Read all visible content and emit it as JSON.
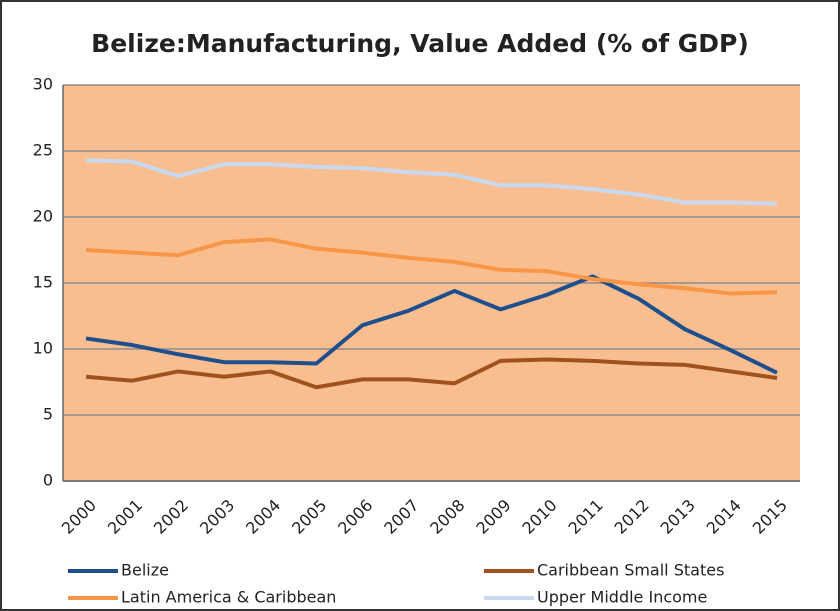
{
  "chart_data": {
    "type": "line",
    "title": "Belize:Manufacturing, Value Added (% of GDP)",
    "categories": [
      "2000",
      "2001",
      "2002",
      "2003",
      "2004",
      "2005",
      "2006",
      "2007",
      "2008",
      "2009",
      "2010",
      "2011",
      "2012",
      "2013",
      "2014",
      "2015"
    ],
    "series": [
      {
        "name": "Belize",
        "color": "#1f4e8c",
        "values": [
          10.8,
          10.3,
          9.6,
          9.0,
          9.0,
          8.9,
          11.8,
          12.9,
          14.4,
          13.0,
          14.1,
          15.5,
          13.8,
          11.5,
          9.9,
          8.2
        ]
      },
      {
        "name": "Caribbean Small States",
        "color": "#a0521d",
        "values": [
          7.9,
          7.6,
          8.3,
          7.9,
          8.3,
          7.1,
          7.7,
          7.7,
          7.4,
          9.1,
          9.2,
          9.1,
          8.9,
          8.8,
          8.3,
          7.8
        ]
      },
      {
        "name": "Latin America & Caribbean",
        "color": "#f79646",
        "values": [
          17.5,
          17.3,
          17.1,
          18.1,
          18.3,
          17.6,
          17.3,
          16.9,
          16.6,
          16.0,
          15.9,
          15.3,
          14.9,
          14.6,
          14.2,
          14.3
        ]
      },
      {
        "name": "Upper Middle Income",
        "color": "#c6d9f1",
        "values": [
          24.3,
          24.2,
          23.1,
          24.0,
          24.0,
          23.8,
          23.7,
          23.4,
          23.2,
          22.4,
          22.4,
          22.1,
          21.7,
          21.1,
          21.1,
          21.0
        ]
      }
    ],
    "ylim": [
      0,
      30
    ],
    "yticks": [
      0,
      5,
      10,
      15,
      20,
      25,
      30
    ],
    "grid": true,
    "legend": "bottom"
  }
}
